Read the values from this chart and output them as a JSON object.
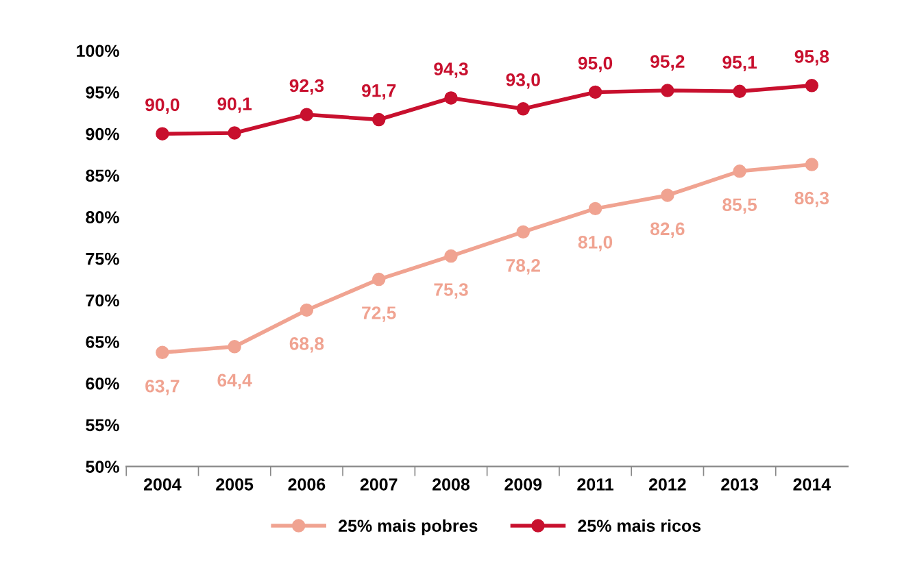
{
  "chart_data": {
    "type": "line",
    "categories": [
      "2004",
      "2005",
      "2006",
      "2007",
      "2008",
      "2009",
      "2011",
      "2012",
      "2013",
      "2014"
    ],
    "series": [
      {
        "name": "25% mais pobres",
        "color": "#f0a391",
        "values": [
          63.7,
          64.4,
          68.8,
          72.5,
          75.3,
          78.2,
          81.0,
          82.6,
          85.5,
          86.3
        ],
        "value_labels": [
          "63,7",
          "64,4",
          "68,8",
          "72,5",
          "75,3",
          "78,2",
          "81,0",
          "82,6",
          "85,5",
          "86,3"
        ]
      },
      {
        "name": "25% mais ricos",
        "color": "#c8102e",
        "values": [
          90.0,
          90.1,
          92.3,
          91.7,
          94.3,
          93.0,
          95.0,
          95.2,
          95.1,
          95.8
        ],
        "value_labels": [
          "90,0",
          "90,1",
          "92,3",
          "91,7",
          "94,3",
          "93,0",
          "95,0",
          "95,2",
          "95,1",
          "95,8"
        ]
      }
    ],
    "ylim": [
      50,
      100
    ],
    "yticks": [
      {
        "value": 50,
        "label": "50%"
      },
      {
        "value": 55,
        "label": "55%"
      },
      {
        "value": 60,
        "label": "60%"
      },
      {
        "value": 65,
        "label": "65%"
      },
      {
        "value": 70,
        "label": "70%"
      },
      {
        "value": 75,
        "label": "75%"
      },
      {
        "value": 80,
        "label": "80%"
      },
      {
        "value": 85,
        "label": "85%"
      },
      {
        "value": 90,
        "label": "90%"
      },
      {
        "value": 95,
        "label": "95%"
      },
      {
        "value": 100,
        "label": "100%"
      }
    ],
    "grid": false,
    "legend": "bottom",
    "marker": "circle",
    "line_style": "solid"
  }
}
